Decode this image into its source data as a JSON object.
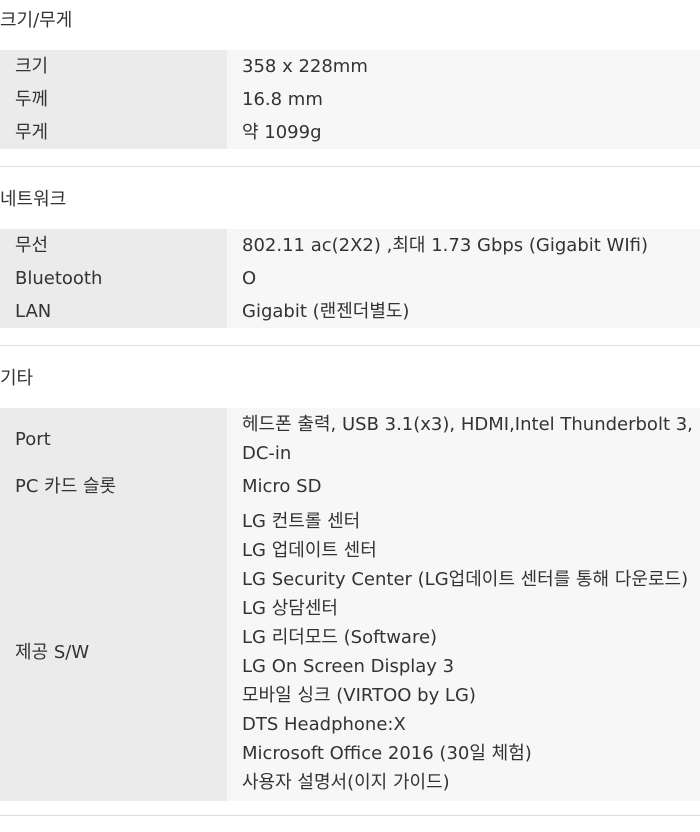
{
  "sections": [
    {
      "title": "크기/무게",
      "rows": [
        {
          "label": "크기",
          "value": "358 x 228mm"
        },
        {
          "label": "두께",
          "value": "16.8 mm"
        },
        {
          "label": "무게",
          "value": "약 1099g"
        }
      ]
    },
    {
      "title": "네트워크",
      "rows": [
        {
          "label": "무선",
          "value": "802.11 ac(2X2) ,최대 1.73 Gbps (Gigabit WIfi)"
        },
        {
          "label": "Bluetooth",
          "value": "O"
        },
        {
          "label": "LAN",
          "value": "Gigabit (랜젠더별도)"
        }
      ]
    },
    {
      "title": "기타",
      "port": {
        "label": "Port",
        "lines": [
          "헤드폰 출력, USB 3.1(x3), HDMI,Intel Thunderbolt 3,",
          "DC-in"
        ]
      },
      "pccard": {
        "label": "PC 카드 슬롯",
        "value": "Micro SD"
      },
      "software": {
        "label": "제공 S/W",
        "lines": [
          "LG 컨트롤 센터",
          "LG 업데이트 센터",
          "LG Security Center (LG업데이트 센터를 통해 다운로드)",
          "LG 상담센터",
          "LG 리더모드 (Software)",
          "LG On Screen Display 3",
          "모바일 싱크 (VIRTOO by LG)",
          "DTS Headphone:X",
          "Microsoft Office 2016 (30일 체험)",
          "사용자 설명서(이지 가이드)"
        ]
      }
    }
  ]
}
